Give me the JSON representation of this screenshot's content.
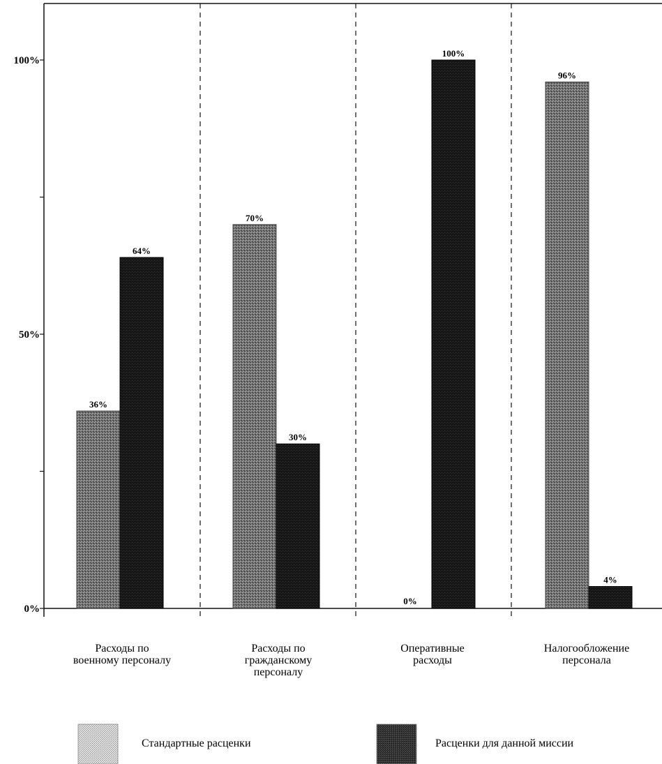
{
  "chart_data": {
    "type": "bar",
    "categories": [
      [
        "Расходы по",
        "военному персоналу"
      ],
      [
        "Расходы по",
        "гражданскому",
        "персоналу"
      ],
      [
        "Оперативные",
        "расходы"
      ],
      [
        "Налогообложение",
        "персонала"
      ]
    ],
    "series": [
      {
        "name": "Стандартные расценки",
        "values": [
          36,
          70,
          0,
          96
        ],
        "labels": [
          "36%",
          "70%",
          "0%",
          "96%"
        ],
        "color": "#7a7a7a"
      },
      {
        "name": "Расценки для данной миссии",
        "values": [
          64,
          30,
          100,
          4
        ],
        "labels": [
          "64%",
          "30%",
          "100%",
          "4%"
        ],
        "color": "#151515"
      }
    ],
    "y_ticks": [
      {
        "value": 0,
        "label": "0%"
      },
      {
        "value": 25,
        "label": ""
      },
      {
        "value": 50,
        "label": "50%"
      },
      {
        "value": 75,
        "label": ""
      },
      {
        "value": 100,
        "label": "100%"
      }
    ],
    "ylim": [
      0,
      110
    ],
    "grid": false,
    "category_separators": "dashed",
    "legend_position": "bottom",
    "title": "",
    "xlabel": "",
    "ylabel": ""
  }
}
